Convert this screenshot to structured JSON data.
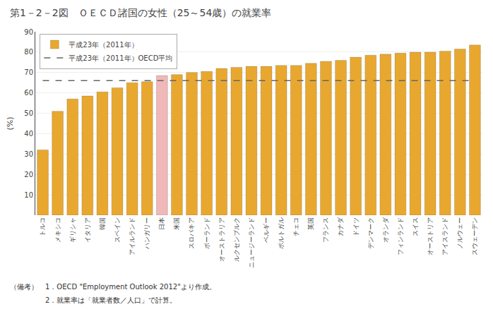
{
  "chart_data": {
    "type": "bar",
    "title": "第1－2－2図　ＯＥＣＤ諸国の女性（25～54歳）の就業率",
    "ylabel": "(%)",
    "categories": [
      "トルコ",
      "メキシコ",
      "ギリシャ",
      "イタリア",
      "韓国",
      "スペイン",
      "アイルランド",
      "ハンガリー",
      "日本",
      "米国",
      "スロバキア",
      "ポーランド",
      "オーストラリア",
      "ルクセンブルク",
      "ニュージーランド",
      "ベルギー",
      "ポルトガル",
      "チェコ",
      "英国",
      "フランス",
      "カナダ",
      "ドイツ",
      "デンマーク",
      "オランダ",
      "フィンランド",
      "スイス",
      "オーストリア",
      "アイスランド",
      "ノルウェー",
      "スウェーデン"
    ],
    "series": [
      {
        "name": "平成23年（2011年）",
        "values": [
          32.0,
          51.0,
          57.0,
          58.5,
          60.5,
          62.5,
          65.0,
          65.5,
          68.5,
          69.0,
          70.0,
          70.5,
          72.0,
          72.5,
          73.0,
          73.0,
          73.5,
          73.5,
          74.5,
          75.5,
          76.0,
          77.5,
          78.5,
          79.0,
          79.5,
          80.0,
          80.0,
          80.5,
          81.5,
          83.5
        ],
        "colors": [
          "#E8A830",
          "#E8A830",
          "#E8A830",
          "#E8A830",
          "#E8A830",
          "#E8A830",
          "#E8A830",
          "#E8A830",
          "#F0B8B8",
          "#E8A830",
          "#E8A830",
          "#E8A830",
          "#E8A830",
          "#E8A830",
          "#E8A830",
          "#E8A830",
          "#E8A830",
          "#E8A830",
          "#E8A830",
          "#E8A830",
          "#E8A830",
          "#E8A830",
          "#E8A830",
          "#E8A830",
          "#E8A830",
          "#E8A830",
          "#E8A830",
          "#E8A830",
          "#E8A830",
          "#E8A830"
        ]
      }
    ],
    "oecd_average": {
      "name": "平成23年（2011年）OECD平均",
      "value": 66.0,
      "color": "#666666",
      "line_style": "dashed"
    },
    "notes": [
      "（備考）　1．OECD \"Employment Outlook 2012\"より作成。",
      "　　　　　2．就業率は「就業者数／人口」で計算。"
    ],
    "ylim": [
      0,
      90
    ],
    "yticks": [
      10,
      20,
      30,
      40,
      50,
      60,
      70,
      80,
      90
    ],
    "grid": true,
    "legend": "upper left"
  }
}
